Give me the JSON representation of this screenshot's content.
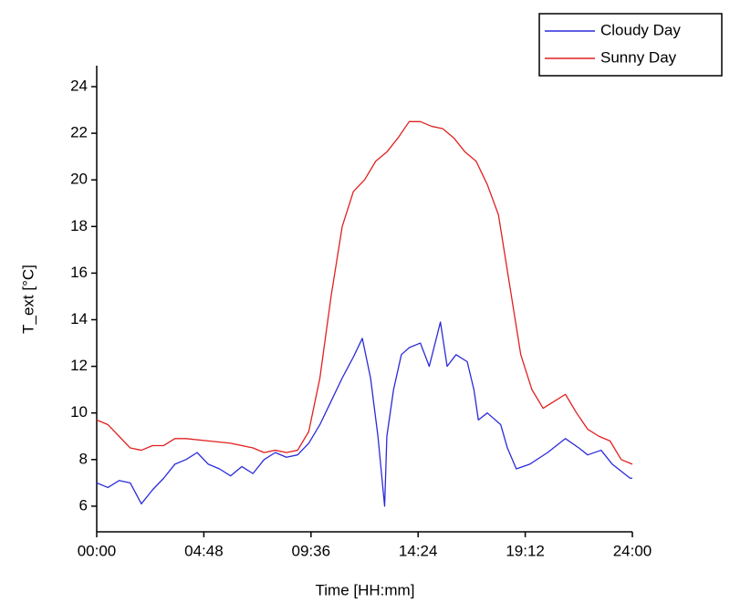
{
  "chart_data": {
    "type": "line",
    "xlabel": "Time [HH:mm]",
    "ylabel": "T_ext [°C]",
    "xlim": [
      0,
      24
    ],
    "xticks": [
      {
        "value": 0,
        "label": "00:00"
      },
      {
        "value": 4.8,
        "label": "04:48"
      },
      {
        "value": 9.6,
        "label": "09:36"
      },
      {
        "value": 14.4,
        "label": "14:24"
      },
      {
        "value": 19.2,
        "label": "19:12"
      },
      {
        "value": 24,
        "label": "24:00"
      }
    ],
    "ylim": [
      4.9,
      24.9
    ],
    "yticks": [
      6,
      8,
      10,
      12,
      14,
      16,
      18,
      20,
      22,
      24
    ],
    "legend": "top-right",
    "series": [
      {
        "name": "Cloudy Day",
        "color": "#2b2bd9",
        "x": [
          0,
          0.5,
          1,
          1.5,
          2,
          2.5,
          3,
          3.5,
          4,
          4.5,
          5,
          5.5,
          6,
          6.5,
          7,
          7.5,
          8,
          8.5,
          9,
          9.5,
          10,
          10.5,
          11,
          11.5,
          11.9,
          12.27,
          12.6,
          12.9,
          13.0,
          13.3,
          13.65,
          14.0,
          14.5,
          14.9,
          15.4,
          15.7,
          16.1,
          16.6,
          16.9,
          17.1,
          17.5,
          18.1,
          18.4,
          18.8,
          19.4,
          20.2,
          21.0,
          21.6,
          22.0,
          22.6,
          23.1,
          23.9,
          24
        ],
        "values": [
          7.0,
          6.8,
          7.1,
          7.0,
          6.1,
          6.7,
          7.2,
          7.8,
          8.0,
          8.3,
          7.8,
          7.6,
          7.3,
          7.7,
          7.4,
          8.0,
          8.3,
          8.1,
          8.2,
          8.7,
          9.5,
          10.5,
          11.5,
          12.4,
          13.2,
          11.5,
          9.0,
          6.0,
          9.0,
          11.0,
          12.5,
          12.8,
          13.0,
          12.0,
          13.9,
          12.0,
          12.5,
          12.2,
          11.0,
          9.7,
          10.0,
          9.5,
          8.5,
          7.6,
          7.8,
          8.3,
          8.9,
          8.5,
          8.2,
          8.4,
          7.8,
          7.2,
          7.2
        ]
      },
      {
        "name": "Sunny Day",
        "color": "#e02020",
        "x": [
          0,
          0.5,
          1,
          1.5,
          2,
          2.5,
          3,
          3.5,
          4,
          5,
          6,
          7,
          7.5,
          8,
          8.5,
          9,
          9.5,
          10,
          10.5,
          11,
          11.5,
          12,
          12.5,
          13,
          13.5,
          14,
          14.5,
          15,
          15.5,
          16,
          16.5,
          17,
          17.5,
          18,
          18.5,
          19,
          19.5,
          20,
          20.5,
          21,
          21.5,
          22,
          22.5,
          23,
          23.5,
          24
        ],
        "values": [
          9.7,
          9.5,
          9.0,
          8.5,
          8.4,
          8.6,
          8.6,
          8.9,
          8.9,
          8.8,
          8.7,
          8.5,
          8.3,
          8.4,
          8.3,
          8.4,
          9.2,
          11.5,
          15.0,
          18.0,
          19.5,
          20.0,
          20.8,
          21.2,
          21.8,
          22.5,
          22.5,
          22.3,
          22.2,
          21.8,
          21.2,
          20.8,
          19.8,
          18.5,
          15.5,
          12.5,
          11.0,
          10.2,
          10.5,
          10.8,
          10.0,
          9.3,
          9.0,
          8.8,
          8.0,
          7.8
        ]
      }
    ]
  }
}
